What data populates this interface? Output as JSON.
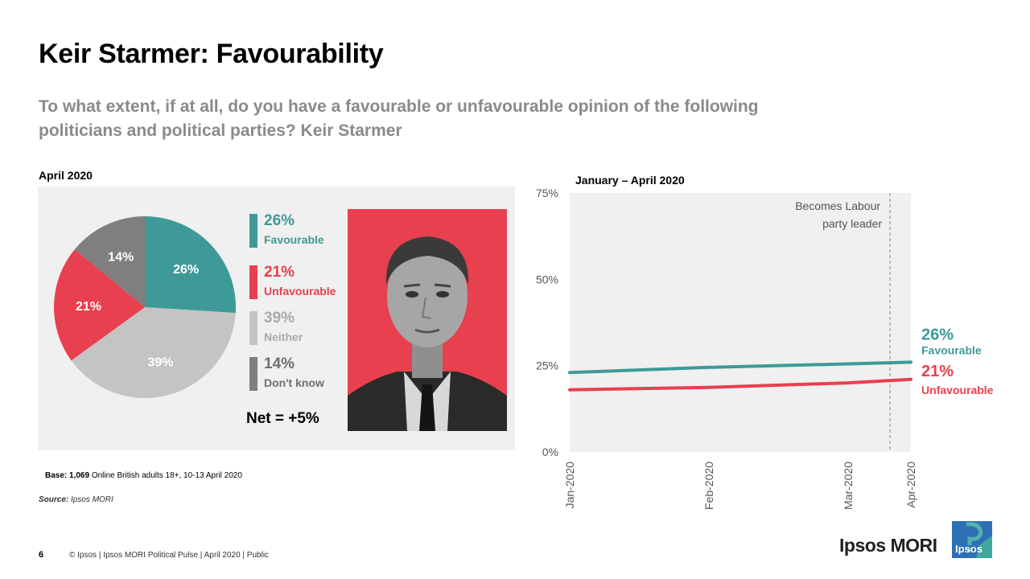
{
  "title": "Keir Starmer: Favourability",
  "question": "To what extent, if at all, do you have a favourable or unfavourable opinion of the following politicians and political parties? Keir Starmer",
  "left_heading": "April 2020",
  "right_heading": "January – April 2020",
  "net": "Net = +5%",
  "base": {
    "label": "Base: 1,069",
    "text": " Online British adults 18+, 10-13 April 2020"
  },
  "source": {
    "label": "Source:",
    "text": " Ipsos MORI"
  },
  "footer": {
    "page": "6",
    "text": "© Ipsos | Ipsos MORI  Political Pulse | April 2020 | Public"
  },
  "brand": {
    "name": "Ipsos MORI",
    "logo_text": "Ipsos"
  },
  "colors": {
    "favourable": "#3d9a98",
    "unfavourable": "#e8404f",
    "neither": "#c4c4c4",
    "dont_know": "#7f7f7f"
  },
  "legend": [
    {
      "pct": "26%",
      "label": "Favourable"
    },
    {
      "pct": "21%",
      "label": "Unfavourable"
    },
    {
      "pct": "39%",
      "label": "Neither"
    },
    {
      "pct": "14%",
      "label": "Don't know"
    }
  ],
  "chart_data": [
    {
      "type": "pie",
      "title": "April 2020",
      "categories": [
        "Favourable",
        "Neither",
        "Unfavourable",
        "Don't know"
      ],
      "values": [
        26,
        39,
        21,
        14
      ],
      "labels": [
        "26%",
        "39%",
        "21%",
        "14%"
      ]
    },
    {
      "type": "line",
      "title": "January – April 2020",
      "x": [
        "Jan-2020",
        "Feb-2020",
        "Mar-2020",
        "Apr-2020"
      ],
      "x_pos": [
        0,
        1,
        2,
        2.45
      ],
      "series": [
        {
          "name": "Favourable",
          "values": [
            23,
            24.5,
            25.5,
            26
          ],
          "end_label": "26%"
        },
        {
          "name": "Unfavourable",
          "values": [
            18,
            18.7,
            20,
            21
          ],
          "end_label": "21%"
        }
      ],
      "ylim": [
        0,
        75
      ],
      "yticks": [
        "0%",
        "25%",
        "50%",
        "75%"
      ],
      "ytick_values": [
        0,
        25,
        50,
        75
      ],
      "annotation": {
        "text_line1": "Becomes Labour",
        "text_line2": "party leader",
        "x": 2.3
      }
    }
  ]
}
